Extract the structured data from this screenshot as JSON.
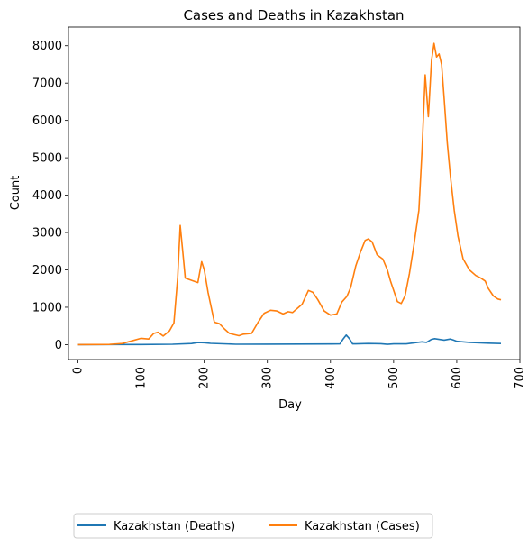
{
  "chart_data": {
    "type": "line",
    "title": "Cases and Deaths in Kazakhstan",
    "xlabel": "Day",
    "ylabel": "Count",
    "xlim": [
      -15,
      700
    ],
    "ylim": [
      -400,
      8500
    ],
    "xticks": [
      0,
      100,
      200,
      300,
      400,
      500,
      600,
      700
    ],
    "yticks": [
      0,
      1000,
      2000,
      3000,
      4000,
      5000,
      6000,
      7000,
      8000
    ],
    "grid": false,
    "legend_position": "bottom-center, below chart",
    "series": [
      {
        "name": "Kazakhstan (Deaths)",
        "color": "#1f77b4",
        "points": [
          [
            0,
            0
          ],
          [
            100,
            2
          ],
          [
            150,
            10
          ],
          [
            180,
            30
          ],
          [
            190,
            55
          ],
          [
            200,
            50
          ],
          [
            210,
            35
          ],
          [
            250,
            10
          ],
          [
            300,
            12
          ],
          [
            350,
            15
          ],
          [
            400,
            18
          ],
          [
            415,
            20
          ],
          [
            420,
            150
          ],
          [
            425,
            255
          ],
          [
            430,
            160
          ],
          [
            435,
            20
          ],
          [
            440,
            20
          ],
          [
            460,
            30
          ],
          [
            480,
            25
          ],
          [
            490,
            8
          ],
          [
            500,
            20
          ],
          [
            520,
            20
          ],
          [
            545,
            75
          ],
          [
            552,
            60
          ],
          [
            560,
            140
          ],
          [
            565,
            160
          ],
          [
            580,
            120
          ],
          [
            590,
            150
          ],
          [
            595,
            120
          ],
          [
            600,
            90
          ],
          [
            620,
            60
          ],
          [
            650,
            40
          ],
          [
            670,
            30
          ]
        ]
      },
      {
        "name": "Kazakhstan (Cases)",
        "color": "#ff7f0e",
        "points": [
          [
            0,
            0
          ],
          [
            50,
            5
          ],
          [
            70,
            30
          ],
          [
            85,
            100
          ],
          [
            100,
            170
          ],
          [
            112,
            150
          ],
          [
            120,
            300
          ],
          [
            127,
            330
          ],
          [
            135,
            230
          ],
          [
            145,
            370
          ],
          [
            152,
            580
          ],
          [
            158,
            1800
          ],
          [
            162,
            3190
          ],
          [
            166,
            2500
          ],
          [
            170,
            1780
          ],
          [
            180,
            1720
          ],
          [
            190,
            1660
          ],
          [
            196,
            2220
          ],
          [
            200,
            2000
          ],
          [
            206,
            1400
          ],
          [
            216,
            600
          ],
          [
            224,
            560
          ],
          [
            232,
            420
          ],
          [
            240,
            300
          ],
          [
            255,
            240
          ],
          [
            262,
            280
          ],
          [
            275,
            300
          ],
          [
            285,
            590
          ],
          [
            295,
            840
          ],
          [
            305,
            920
          ],
          [
            315,
            900
          ],
          [
            325,
            820
          ],
          [
            333,
            880
          ],
          [
            340,
            860
          ],
          [
            355,
            1080
          ],
          [
            365,
            1450
          ],
          [
            372,
            1400
          ],
          [
            380,
            1200
          ],
          [
            390,
            900
          ],
          [
            400,
            790
          ],
          [
            410,
            820
          ],
          [
            418,
            1140
          ],
          [
            426,
            1290
          ],
          [
            432,
            1530
          ],
          [
            440,
            2100
          ],
          [
            448,
            2500
          ],
          [
            455,
            2790
          ],
          [
            460,
            2830
          ],
          [
            466,
            2750
          ],
          [
            474,
            2400
          ],
          [
            483,
            2290
          ],
          [
            490,
            2000
          ],
          [
            495,
            1700
          ],
          [
            500,
            1450
          ],
          [
            506,
            1150
          ],
          [
            512,
            1100
          ],
          [
            518,
            1300
          ],
          [
            525,
            1900
          ],
          [
            532,
            2650
          ],
          [
            540,
            3600
          ],
          [
            545,
            5200
          ],
          [
            550,
            7220
          ],
          [
            555,
            6100
          ],
          [
            560,
            7600
          ],
          [
            564,
            8060
          ],
          [
            568,
            7700
          ],
          [
            572,
            7780
          ],
          [
            576,
            7500
          ],
          [
            580,
            6600
          ],
          [
            585,
            5400
          ],
          [
            590,
            4500
          ],
          [
            596,
            3600
          ],
          [
            602,
            2900
          ],
          [
            610,
            2300
          ],
          [
            620,
            2000
          ],
          [
            630,
            1850
          ],
          [
            638,
            1780
          ],
          [
            645,
            1700
          ],
          [
            650,
            1500
          ],
          [
            658,
            1300
          ],
          [
            665,
            1220
          ],
          [
            670,
            1200
          ]
        ]
      }
    ]
  }
}
